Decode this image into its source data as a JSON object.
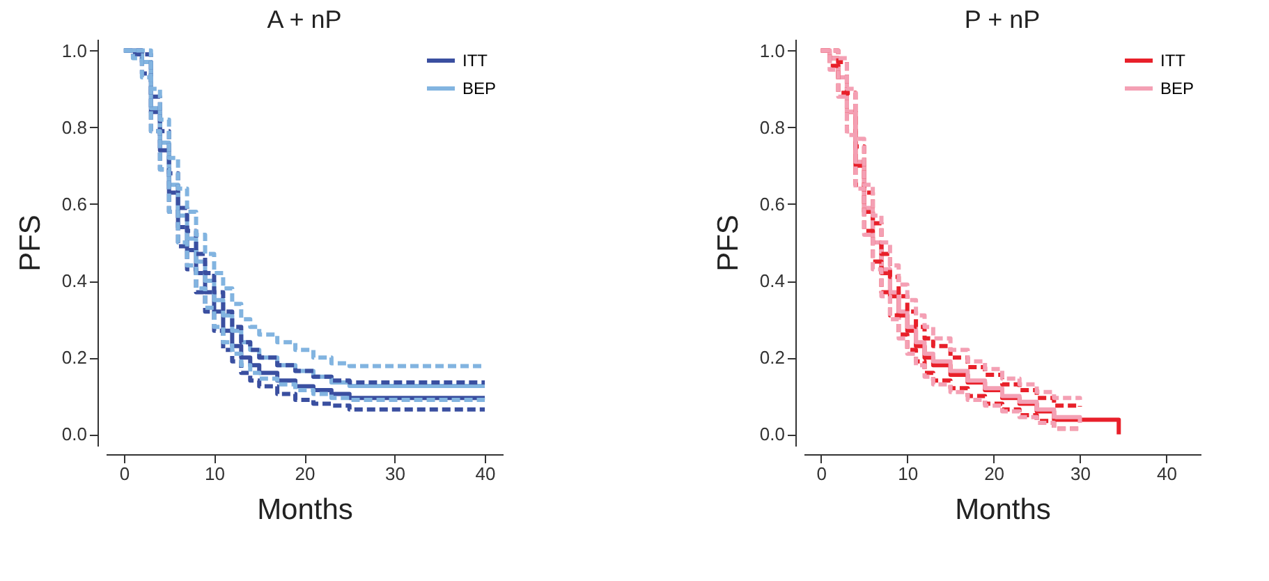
{
  "chart_data": [
    {
      "type": "step",
      "title": "A + nP",
      "xlabel": "Months",
      "ylabel": "PFS",
      "legend": "top right",
      "line_style": "solid",
      "xlim": [
        -2,
        42
      ],
      "ylim": [
        -0.03,
        1.03
      ],
      "xticks": [
        0,
        10,
        20,
        30,
        40
      ],
      "yticks": [
        {
          "value": 0,
          "label": "0.0"
        },
        {
          "value": 0.2,
          "label": "0.2"
        },
        {
          "value": 0.4,
          "label": "0.4"
        },
        {
          "value": 0.6,
          "label": "0.6"
        },
        {
          "value": 0.8,
          "label": "0.8"
        },
        {
          "value": 1,
          "label": "1.0"
        }
      ],
      "x": [
        0,
        1,
        2,
        3,
        4,
        5,
        6,
        7,
        8,
        9,
        10,
        11,
        12,
        13,
        14,
        15,
        17,
        19,
        21,
        23,
        25,
        30,
        35,
        40
      ],
      "series": [
        {
          "name": "ITT",
          "color": "#3a4fa0",
          "values": [
            1,
            1,
            0.97,
            0.84,
            0.74,
            0.63,
            0.54,
            0.48,
            0.42,
            0.37,
            0.32,
            0.27,
            0.23,
            0.2,
            0.18,
            0.16,
            0.14,
            0.125,
            0.115,
            0.105,
            0.095,
            0.095,
            0.095,
            0.095
          ]
        },
        {
          "color": "#3a4fa0",
          "line_style": "dashed",
          "values": [
            1,
            0.99,
            0.94,
            0.79,
            0.69,
            0.58,
            0.49,
            0.43,
            0.37,
            0.32,
            0.27,
            0.22,
            0.19,
            0.16,
            0.14,
            0.125,
            0.105,
            0.09,
            0.08,
            0.075,
            0.065,
            0.065,
            0.065,
            0.065
          ]
        },
        {
          "color": "#3a4fa0",
          "line_style": "dashed",
          "values": [
            1,
            1,
            0.99,
            0.88,
            0.79,
            0.68,
            0.59,
            0.53,
            0.47,
            0.42,
            0.37,
            0.32,
            0.28,
            0.24,
            0.22,
            0.2,
            0.18,
            0.165,
            0.15,
            0.14,
            0.135,
            0.135,
            0.135,
            0.135
          ]
        },
        {
          "name": "BEP",
          "color": "#82b4e0",
          "values": [
            1,
            1,
            0.97,
            0.85,
            0.76,
            0.65,
            0.57,
            0.51,
            0.45,
            0.4,
            0.35,
            0.31,
            0.27,
            0.24,
            0.22,
            0.2,
            0.18,
            0.165,
            0.15,
            0.135,
            0.126,
            0.126,
            0.126,
            0.126
          ]
        },
        {
          "color": "#82b4e0",
          "line_style": "dashed",
          "values": [
            1,
            0.98,
            0.93,
            0.79,
            0.69,
            0.58,
            0.5,
            0.44,
            0.38,
            0.33,
            0.28,
            0.24,
            0.21,
            0.18,
            0.16,
            0.145,
            0.13,
            0.115,
            0.105,
            0.095,
            0.09,
            0.09,
            0.09,
            0.09
          ]
        },
        {
          "color": "#82b4e0",
          "line_style": "dashed",
          "values": [
            1,
            1,
            1,
            0.9,
            0.82,
            0.72,
            0.64,
            0.58,
            0.52,
            0.47,
            0.42,
            0.38,
            0.34,
            0.3,
            0.28,
            0.26,
            0.24,
            0.22,
            0.2,
            0.185,
            0.178,
            0.178,
            0.178,
            0.178
          ]
        }
      ]
    },
    {
      "type": "step",
      "title": "P + nP",
      "xlabel": "Months",
      "ylabel": "PFS",
      "legend": "top right",
      "line_style": "solid",
      "xlim": [
        -2,
        44
      ],
      "ylim": [
        -0.03,
        1.03
      ],
      "xticks": [
        0,
        10,
        20,
        30,
        40
      ],
      "yticks": [
        {
          "value": 0,
          "label": "0.0"
        },
        {
          "value": 0.2,
          "label": "0.2"
        },
        {
          "value": 0.4,
          "label": "0.4"
        },
        {
          "value": 0.6,
          "label": "0.6"
        },
        {
          "value": 0.8,
          "label": "0.8"
        },
        {
          "value": 1,
          "label": "1.0"
        }
      ],
      "x": [
        0,
        1,
        2,
        3,
        4,
        5,
        6,
        7,
        8,
        9,
        10,
        11,
        12,
        13,
        15,
        17,
        19,
        21,
        23,
        25,
        27,
        30,
        34.5
      ],
      "series": [
        {
          "name": "ITT",
          "color": "#e8202a",
          "values": [
            1,
            0.98,
            0.93,
            0.84,
            0.7,
            0.58,
            0.5,
            0.42,
            0.36,
            0.31,
            0.27,
            0.23,
            0.2,
            0.18,
            0.155,
            0.135,
            0.115,
            0.095,
            0.08,
            0.06,
            0.038,
            0.038,
            0
          ]
        },
        {
          "color": "#e8202a",
          "line_style": "dashed",
          "values": [
            1,
            0.96,
            0.89,
            0.79,
            0.65,
            0.53,
            0.45,
            0.37,
            0.31,
            0.26,
            0.22,
            0.19,
            0.16,
            0.14,
            0.12,
            0.1,
            0.08,
            0.065,
            0.05,
            0.035,
            0.015,
            0.015,
            null
          ]
        },
        {
          "color": "#e8202a",
          "line_style": "dashed",
          "values": [
            1,
            1,
            0.97,
            0.89,
            0.75,
            0.63,
            0.55,
            0.47,
            0.41,
            0.36,
            0.32,
            0.28,
            0.25,
            0.23,
            0.2,
            0.175,
            0.155,
            0.13,
            0.115,
            0.095,
            0.075,
            0.072,
            null
          ]
        },
        {
          "name": "BEP",
          "color": "#f4a0b4",
          "values": [
            1,
            0.98,
            0.93,
            0.84,
            0.71,
            0.59,
            0.5,
            0.43,
            0.37,
            0.32,
            0.28,
            0.24,
            0.21,
            0.19,
            0.165,
            0.14,
            0.12,
            0.1,
            0.085,
            0.065,
            0.045,
            0.03,
            null
          ]
        },
        {
          "color": "#f4a0b4",
          "line_style": "dashed",
          "values": [
            1,
            0.95,
            0.88,
            0.78,
            0.64,
            0.52,
            0.43,
            0.36,
            0.3,
            0.25,
            0.21,
            0.18,
            0.15,
            0.13,
            0.11,
            0.09,
            0.075,
            0.06,
            0.045,
            0.03,
            0.015,
            0.01,
            null
          ]
        },
        {
          "color": "#f4a0b4",
          "line_style": "dashed",
          "values": [
            1,
            1,
            0.98,
            0.9,
            0.77,
            0.65,
            0.57,
            0.5,
            0.44,
            0.39,
            0.35,
            0.31,
            0.28,
            0.25,
            0.22,
            0.19,
            0.17,
            0.145,
            0.13,
            0.11,
            0.095,
            0.09,
            null
          ]
        }
      ]
    }
  ]
}
